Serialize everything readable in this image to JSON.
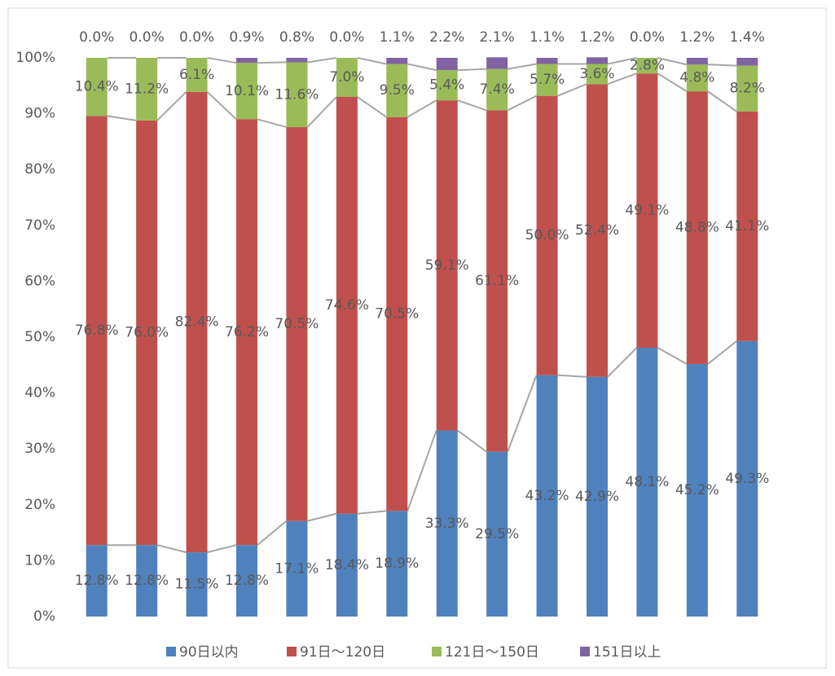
{
  "chart_data": {
    "type": "stacked_bar",
    "categories": [
      null,
      null,
      null,
      null,
      null,
      null,
      null,
      null,
      null,
      null,
      null,
      null,
      null,
      null
    ],
    "ylim": [
      0,
      100
    ],
    "yticks": [
      {
        "value": 0,
        "label": "0%"
      },
      {
        "value": 10,
        "label": "10%"
      },
      {
        "value": 20,
        "label": "20%"
      },
      {
        "value": 30,
        "label": "30%"
      },
      {
        "value": 40,
        "label": "40%"
      },
      {
        "value": 50,
        "label": "50%"
      },
      {
        "value": 60,
        "label": "60%"
      },
      {
        "value": 70,
        "label": "70%"
      },
      {
        "value": 80,
        "label": "80%"
      },
      {
        "value": 90,
        "label": "90%"
      },
      {
        "value": 100,
        "label": "100%"
      }
    ],
    "legend": "bottom",
    "series": [
      {
        "name": "90日以内",
        "color": "#4f81bd",
        "values": [
          12.8,
          12.8,
          11.5,
          12.8,
          17.1,
          18.4,
          18.9,
          33.3,
          29.5,
          43.2,
          42.9,
          48.1,
          45.2,
          49.3
        ],
        "value_labels": [
          "12.8%",
          "12.8%",
          "11.5%",
          "12.8%",
          "17.1%",
          "18.4%",
          "18.9%",
          "33.3%",
          "29.5%",
          "43.2%",
          "42.9%",
          "48.1%",
          "45.2%",
          "49.3%"
        ]
      },
      {
        "name": "91日～120日",
        "color": "#c0504d",
        "values": [
          76.8,
          76.0,
          82.4,
          76.2,
          70.5,
          74.6,
          70.5,
          59.1,
          61.1,
          50.0,
          52.4,
          49.1,
          48.8,
          41.1
        ],
        "value_labels": [
          "76.8%",
          "76.0%",
          "82.4%",
          "76.2%",
          "70.5%",
          "74.6%",
          "70.5%",
          "59.1%",
          "61.1%",
          "50.0%",
          "52.4%",
          "49.1%",
          "48.8%",
          "41.1%"
        ]
      },
      {
        "name": "121日～150日",
        "color": "#9bbb59",
        "values": [
          10.4,
          11.2,
          6.1,
          10.1,
          11.6,
          7.0,
          9.5,
          5.4,
          7.4,
          5.7,
          3.6,
          2.8,
          4.8,
          8.2
        ],
        "value_labels": [
          "10.4%",
          "11.2%",
          "6.1%",
          "10.1%",
          "11.6%",
          "7.0%",
          "9.5%",
          "5.4%",
          "7.4%",
          "5.7%",
          "3.6%",
          "2.8%",
          "4.8%",
          "8.2%"
        ]
      },
      {
        "name": "151日以上",
        "color": "#8064a2",
        "values": [
          0.0,
          0.0,
          0.0,
          0.9,
          0.8,
          0.0,
          1.1,
          2.2,
          2.1,
          1.1,
          1.2,
          0.0,
          1.2,
          1.4
        ],
        "value_labels": [
          "0.0%",
          "0.0%",
          "0.0%",
          "0.9%",
          "0.8%",
          "0.0%",
          "1.1%",
          "2.2%",
          "2.1%",
          "1.1%",
          "1.2%",
          "0.0%",
          "1.2%",
          "1.4%"
        ]
      }
    ]
  }
}
